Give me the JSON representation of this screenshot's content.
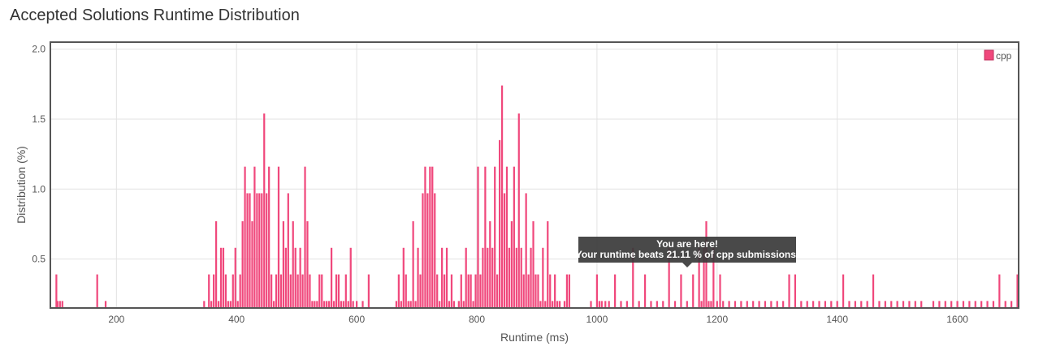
{
  "header": {
    "title": "Accepted Solutions Runtime Distribution"
  },
  "tooltip": {
    "line1": "You are here!",
    "line2": "Your runtime beats 21.11 % of cpp submissions."
  },
  "chart_data": {
    "type": "bar",
    "xlabel": "Runtime (ms)",
    "ylabel": "Distribution (%)",
    "xlim": [
      90,
      1702
    ],
    "ylim": [
      0.15,
      2.05
    ],
    "grid": true,
    "legend_position": "top-right",
    "x_ticks": [
      200,
      400,
      600,
      800,
      1000,
      1200,
      1400,
      1600
    ],
    "y_ticks": [
      0.5,
      1.0,
      1.5,
      2.0
    ],
    "y_tick_labels": [
      "0.5",
      "1.0",
      "1.5",
      "2.0"
    ],
    "highlight_x": 1160,
    "color": "#f0487c",
    "series": [
      {
        "name": "cpp",
        "points": [
          [
            100,
            0.39
          ],
          [
            102,
            0.2
          ],
          [
            106,
            0.2
          ],
          [
            110,
            0.2
          ],
          [
            168,
            0.39
          ],
          [
            182,
            0.2
          ],
          [
            346,
            0.2
          ],
          [
            354,
            0.39
          ],
          [
            358,
            0.2
          ],
          [
            362,
            0.39
          ],
          [
            366,
            0.77
          ],
          [
            370,
            0.2
          ],
          [
            374,
            0.58
          ],
          [
            378,
            0.58
          ],
          [
            382,
            0.39
          ],
          [
            386,
            0.2
          ],
          [
            390,
            0.2
          ],
          [
            394,
            0.39
          ],
          [
            398,
            0.58
          ],
          [
            402,
            0.2
          ],
          [
            406,
            0.39
          ],
          [
            410,
            0.77
          ],
          [
            414,
            1.16
          ],
          [
            418,
            0.97
          ],
          [
            422,
            0.97
          ],
          [
            426,
            0.77
          ],
          [
            430,
            1.16
          ],
          [
            434,
            0.97
          ],
          [
            438,
            0.97
          ],
          [
            442,
            0.97
          ],
          [
            446,
            1.54
          ],
          [
            450,
            0.97
          ],
          [
            454,
            1.16
          ],
          [
            458,
            0.39
          ],
          [
            462,
            0.2
          ],
          [
            466,
            0.39
          ],
          [
            470,
            1.16
          ],
          [
            474,
            0.39
          ],
          [
            478,
            0.77
          ],
          [
            482,
            0.58
          ],
          [
            486,
            0.97
          ],
          [
            490,
            0.39
          ],
          [
            494,
            0.77
          ],
          [
            498,
            0.58
          ],
          [
            502,
            0.39
          ],
          [
            506,
            0.58
          ],
          [
            510,
            0.39
          ],
          [
            514,
            1.16
          ],
          [
            518,
            0.77
          ],
          [
            522,
            0.39
          ],
          [
            526,
            0.2
          ],
          [
            530,
            0.2
          ],
          [
            534,
            0.2
          ],
          [
            538,
            0.39
          ],
          [
            542,
            0.39
          ],
          [
            546,
            0.2
          ],
          [
            550,
            0.2
          ],
          [
            554,
            0.2
          ],
          [
            558,
            0.58
          ],
          [
            562,
            0.2
          ],
          [
            566,
            0.39
          ],
          [
            570,
            0.39
          ],
          [
            574,
            0.2
          ],
          [
            578,
            0.2
          ],
          [
            582,
            0.39
          ],
          [
            586,
            0.2
          ],
          [
            590,
            0.58
          ],
          [
            594,
            0.2
          ],
          [
            600,
            0.2
          ],
          [
            610,
            0.2
          ],
          [
            620,
            0.39
          ],
          [
            666,
            0.2
          ],
          [
            670,
            0.39
          ],
          [
            674,
            0.2
          ],
          [
            678,
            0.58
          ],
          [
            682,
            0.39
          ],
          [
            686,
            0.2
          ],
          [
            690,
            0.2
          ],
          [
            694,
            0.77
          ],
          [
            698,
            0.2
          ],
          [
            702,
            0.58
          ],
          [
            706,
            0.39
          ],
          [
            710,
            0.97
          ],
          [
            714,
            1.16
          ],
          [
            718,
            0.97
          ],
          [
            722,
            1.16
          ],
          [
            726,
            1.16
          ],
          [
            730,
            0.97
          ],
          [
            734,
            0.39
          ],
          [
            738,
            0.2
          ],
          [
            742,
            0.58
          ],
          [
            746,
            0.39
          ],
          [
            750,
            0.58
          ],
          [
            754,
            0.2
          ],
          [
            758,
            0.39
          ],
          [
            762,
            0.2
          ],
          [
            770,
            0.2
          ],
          [
            774,
            0.39
          ],
          [
            778,
            0.2
          ],
          [
            782,
            0.58
          ],
          [
            786,
            0.39
          ],
          [
            790,
            0.39
          ],
          [
            794,
            0.2
          ],
          [
            798,
            0.39
          ],
          [
            802,
            1.16
          ],
          [
            806,
            0.39
          ],
          [
            810,
            0.58
          ],
          [
            814,
            1.16
          ],
          [
            818,
            0.58
          ],
          [
            822,
            0.77
          ],
          [
            826,
            0.58
          ],
          [
            830,
            1.16
          ],
          [
            834,
            0.39
          ],
          [
            838,
            1.35
          ],
          [
            842,
            1.74
          ],
          [
            846,
            0.97
          ],
          [
            850,
            1.16
          ],
          [
            854,
            0.58
          ],
          [
            858,
            0.77
          ],
          [
            862,
            1.16
          ],
          [
            866,
            0.58
          ],
          [
            870,
            1.54
          ],
          [
            874,
            0.58
          ],
          [
            878,
            0.39
          ],
          [
            882,
            0.97
          ],
          [
            886,
            0.39
          ],
          [
            890,
            0.58
          ],
          [
            894,
            0.77
          ],
          [
            898,
            0.39
          ],
          [
            902,
            0.39
          ],
          [
            906,
            0.2
          ],
          [
            910,
            0.58
          ],
          [
            914,
            0.2
          ],
          [
            918,
            0.77
          ],
          [
            922,
            0.39
          ],
          [
            926,
            0.2
          ],
          [
            930,
            0.39
          ],
          [
            934,
            0.2
          ],
          [
            938,
            0.2
          ],
          [
            946,
            0.2
          ],
          [
            950,
            0.39
          ],
          [
            954,
            0.39
          ],
          [
            990,
            0.2
          ],
          [
            1000,
            0.39
          ],
          [
            1004,
            0.2
          ],
          [
            1008,
            0.2
          ],
          [
            1014,
            0.2
          ],
          [
            1020,
            0.2
          ],
          [
            1030,
            0.39
          ],
          [
            1040,
            0.2
          ],
          [
            1050,
            0.2
          ],
          [
            1060,
            0.58
          ],
          [
            1070,
            0.2
          ],
          [
            1080,
            0.39
          ],
          [
            1090,
            0.2
          ],
          [
            1100,
            0.2
          ],
          [
            1110,
            0.2
          ],
          [
            1120,
            0.58
          ],
          [
            1130,
            0.2
          ],
          [
            1140,
            0.39
          ],
          [
            1150,
            0.2
          ],
          [
            1160,
            0.39
          ],
          [
            1170,
            0.58
          ],
          [
            1174,
            0.2
          ],
          [
            1178,
            0.58
          ],
          [
            1182,
            0.77
          ],
          [
            1186,
            0.2
          ],
          [
            1190,
            0.2
          ],
          [
            1194,
            0.58
          ],
          [
            1200,
            0.2
          ],
          [
            1205,
            0.39
          ],
          [
            1210,
            0.2
          ],
          [
            1220,
            0.2
          ],
          [
            1230,
            0.2
          ],
          [
            1240,
            0.2
          ],
          [
            1250,
            0.2
          ],
          [
            1260,
            0.2
          ],
          [
            1270,
            0.2
          ],
          [
            1280,
            0.2
          ],
          [
            1290,
            0.2
          ],
          [
            1300,
            0.2
          ],
          [
            1310,
            0.2
          ],
          [
            1320,
            0.39
          ],
          [
            1330,
            0.39
          ],
          [
            1340,
            0.2
          ],
          [
            1350,
            0.2
          ],
          [
            1360,
            0.2
          ],
          [
            1370,
            0.2
          ],
          [
            1380,
            0.2
          ],
          [
            1390,
            0.2
          ],
          [
            1400,
            0.2
          ],
          [
            1410,
            0.39
          ],
          [
            1420,
            0.2
          ],
          [
            1430,
            0.2
          ],
          [
            1440,
            0.2
          ],
          [
            1450,
            0.2
          ],
          [
            1460,
            0.39
          ],
          [
            1470,
            0.2
          ],
          [
            1480,
            0.2
          ],
          [
            1490,
            0.2
          ],
          [
            1500,
            0.2
          ],
          [
            1510,
            0.2
          ],
          [
            1520,
            0.2
          ],
          [
            1530,
            0.2
          ],
          [
            1540,
            0.2
          ],
          [
            1560,
            0.2
          ],
          [
            1570,
            0.2
          ],
          [
            1580,
            0.2
          ],
          [
            1590,
            0.2
          ],
          [
            1600,
            0.2
          ],
          [
            1610,
            0.2
          ],
          [
            1620,
            0.2
          ],
          [
            1630,
            0.2
          ],
          [
            1640,
            0.2
          ],
          [
            1650,
            0.2
          ],
          [
            1660,
            0.2
          ],
          [
            1670,
            0.39
          ],
          [
            1680,
            0.2
          ],
          [
            1690,
            0.2
          ],
          [
            1700,
            0.39
          ]
        ]
      }
    ]
  }
}
